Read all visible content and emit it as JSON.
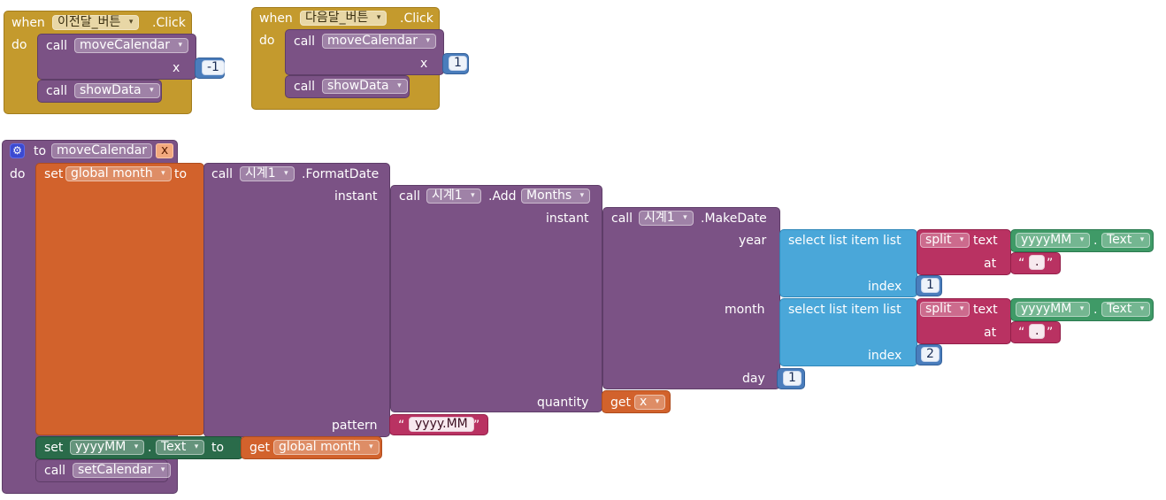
{
  "event1": {
    "when": "when",
    "component": "이전달_버튼",
    "event": ".Click",
    "do": "do",
    "call1": {
      "call": "call",
      "proc": "moveCalendar",
      "arg_label": "x",
      "arg_value": "-1"
    },
    "call2": {
      "call": "call",
      "proc": "showData"
    }
  },
  "event2": {
    "when": "when",
    "component": "다음달_버튼",
    "event": ".Click",
    "do": "do",
    "call1": {
      "call": "call",
      "proc": "moveCalendar",
      "arg_label": "x",
      "arg_value": "1"
    },
    "call2": {
      "call": "call",
      "proc": "showData"
    }
  },
  "proc": {
    "to": "to",
    "name": "moveCalendar",
    "param": "x",
    "do": "do",
    "set1": {
      "set": "set",
      "var": "global month",
      "to": "to"
    },
    "format": {
      "call": "call",
      "comp": "시계1",
      "method": ".FormatDate",
      "instant": "instant",
      "pattern": "pattern",
      "pattern_value": "yyyy.MM"
    },
    "add": {
      "call": "call",
      "comp": "시계1",
      "method": ".Add",
      "unit": "Months",
      "instant": "instant",
      "quantity": "quantity"
    },
    "get_x": {
      "get": "get",
      "var": "x"
    },
    "make": {
      "call": "call",
      "comp": "시계1",
      "method": ".MakeDate",
      "year": "year",
      "month": "month",
      "day": "day",
      "day_value": "1"
    },
    "sel1": {
      "select": "select list item",
      "list": "list",
      "index": "index",
      "index_value": "1"
    },
    "sel2": {
      "select": "select list item",
      "list": "list",
      "index": "index",
      "index_value": "2"
    },
    "split1": {
      "split": "split",
      "text": "text",
      "at": "at",
      "at_value": "."
    },
    "split2": {
      "split": "split",
      "text": "text",
      "at": "at",
      "at_value": "."
    },
    "comp_text1": {
      "comp": "yyyyMM",
      "dot": ".",
      "prop": "Text"
    },
    "comp_text2": {
      "comp": "yyyyMM",
      "dot": ".",
      "prop": "Text"
    },
    "set2": {
      "set": "set",
      "comp": "yyyyMM",
      "dot": ".",
      "prop": "Text",
      "to": "to"
    },
    "get_month": {
      "get": "get",
      "var": "global month"
    },
    "call_set": {
      "call": "call",
      "proc": "setCalendar"
    }
  },
  "quote_open": "“",
  "quote_close": "”",
  "dropdown_icon": "▾",
  "gear_icon": "⚙"
}
